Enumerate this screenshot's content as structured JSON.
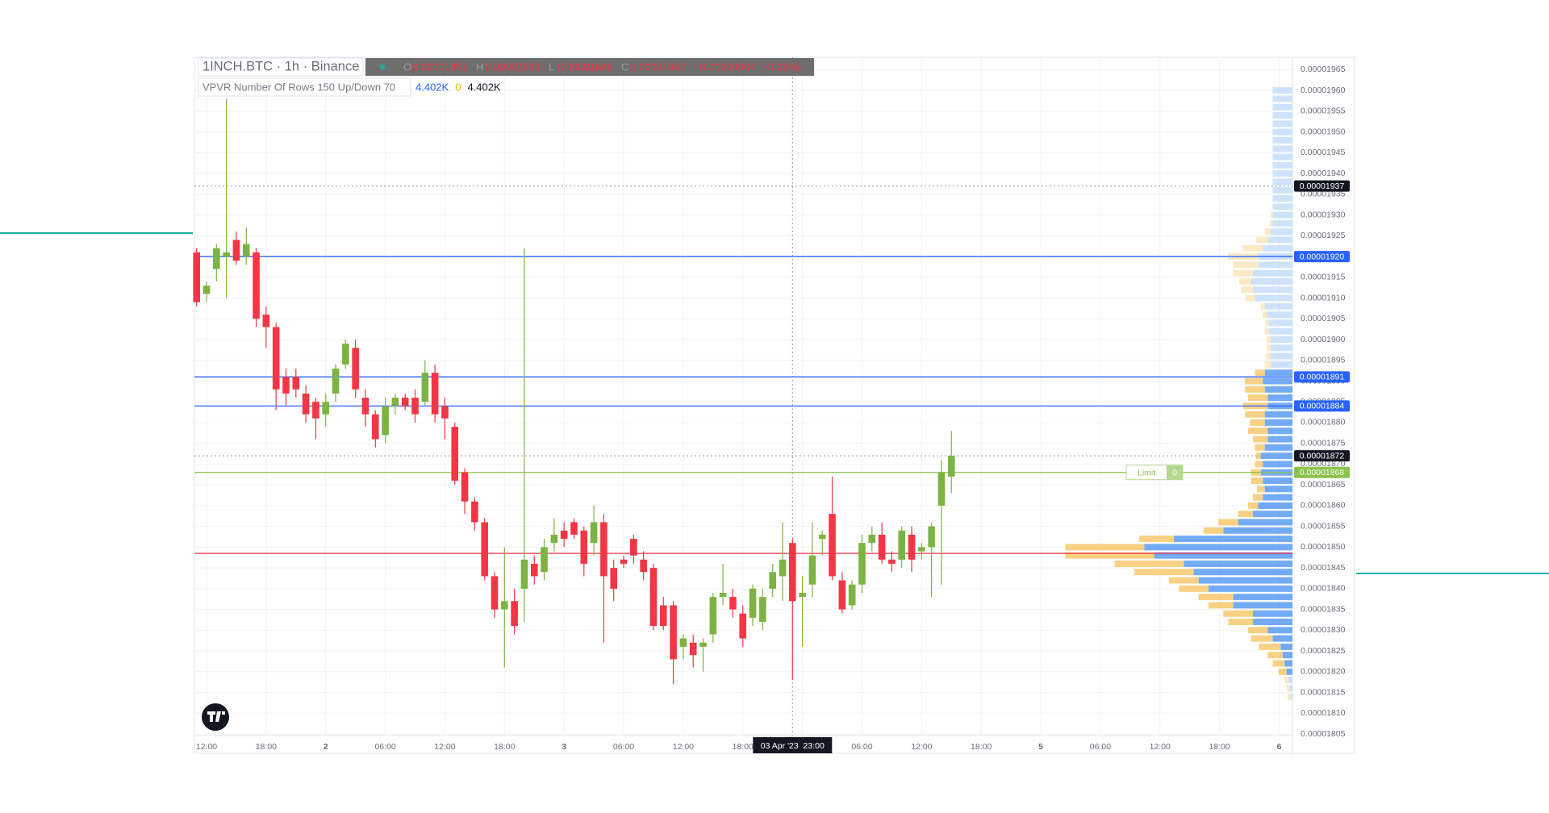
{
  "chart_data": {
    "type": "candlestick",
    "legend": {
      "symbol": "1INCH.BTC · 1h · Binance",
      "ohlc": [
        {
          "key": "O",
          "value": "0.00001851"
        },
        {
          "key": "H",
          "value": "0.00001853"
        },
        {
          "key": "L",
          "value": "0.00001846"
        },
        {
          "key": "C",
          "value": "0.00001847"
        }
      ],
      "change": "−0.00000004 (−0.22%)"
    },
    "indicator": {
      "name": "VPVR Number Of Rows 150 Up/Down 70",
      "values": [
        {
          "text": "4.402K",
          "color": "#2962ff"
        },
        {
          "text": "0",
          "color": "#f5b700"
        },
        {
          "text": "4.402K",
          "color": "#131722"
        }
      ]
    },
    "up_color": "#7cb342",
    "down_color": "#f23645",
    "open": [
      1.921e-05,
      1.911e-05,
      1.917e-05,
      1.92e-05,
      1.924e-05,
      1.92e-05,
      1.921e-05,
      1.906e-05,
      1.903e-05,
      1.891e-05,
      1.891e-05,
      1.887e-05,
      1.885e-05,
      1.882e-05,
      1.887e-05,
      1.894e-05,
      1.898e-05,
      1.886e-05,
      1.882e-05,
      1.877e-05,
      1.884e-05,
      1.886e-05,
      1.886e-05,
      1.885e-05,
      1.892e-05,
      1.884e-05,
      1.879e-05,
      1.868e-05,
      1.861e-05,
      1.856e-05,
      1.843e-05,
      1.835e-05,
      1.837e-05,
      1.84e-05,
      1.846e-05,
      1.844e-05,
      1.851e-05,
      1.854e-05,
      1.856e-05,
      1.854e-05,
      1.851e-05,
      1.856e-05,
      1.845e-05,
      1.847e-05,
      1.852e-05,
      1.847e-05,
      1.845e-05,
      1.836e-05,
      1.836e-05,
      1.826e-05,
      1.827e-05,
      1.826e-05,
      1.829e-05,
      1.838e-05,
      1.838e-05,
      1.834e-05,
      1.833e-05,
      1.832e-05,
      1.84e-05,
      1.843e-05,
      1.851e-05,
      1.838e-05,
      1.841e-05,
      1.852e-05,
      1.858e-05,
      1.842e-05,
      1.836e-05,
      1.841e-05,
      1.851e-05,
      1.853e-05,
      1.847e-05,
      1.847e-05,
      1.853e-05,
      1.849e-05,
      1.85e-05,
      1.86e-05,
      1.867e-05
    ],
    "high": [
      1.922e-05,
      1.914e-05,
      1.923e-05,
      1.958e-05,
      1.926e-05,
      1.927e-05,
      1.922e-05,
      1.908e-05,
      1.904e-05,
      1.893e-05,
      1.893e-05,
      1.889e-05,
      1.886e-05,
      1.887e-05,
      1.894e-05,
      1.9e-05,
      1.9e-05,
      1.888e-05,
      1.883e-05,
      1.886e-05,
      1.887e-05,
      1.887e-05,
      1.888e-05,
      1.895e-05,
      1.894e-05,
      1.886e-05,
      1.88e-05,
      1.869e-05,
      1.862e-05,
      1.857e-05,
      1.844e-05,
      1.85e-05,
      1.84e-05,
      1.922e-05,
      1.848e-05,
      1.852e-05,
      1.857e-05,
      1.856e-05,
      1.857e-05,
      1.855e-05,
      1.86e-05,
      1.858e-05,
      1.847e-05,
      1.848e-05,
      1.853e-05,
      1.849e-05,
      1.846e-05,
      1.838e-05,
      1.837e-05,
      1.829e-05,
      1.829e-05,
      1.828e-05,
      1.839e-05,
      1.846e-05,
      1.84e-05,
      1.836e-05,
      1.841e-05,
      1.84e-05,
      1.846e-05,
      1.856e-05,
      1.852e-05,
      1.843e-05,
      1.856e-05,
      1.854e-05,
      1.867e-05,
      1.844e-05,
      1.842e-05,
      1.853e-05,
      1.855e-05,
      1.856e-05,
      1.849e-05,
      1.855e-05,
      1.855e-05,
      1.851e-05,
      1.856e-05,
      1.871e-05,
      1.878e-05
    ],
    "low": [
      1.908e-05,
      1.909e-05,
      1.914e-05,
      1.91e-05,
      1.918e-05,
      1.918e-05,
      1.903e-05,
      1.898e-05,
      1.883e-05,
      1.884e-05,
      1.886e-05,
      1.88e-05,
      1.876e-05,
      1.879e-05,
      1.885e-05,
      1.893e-05,
      1.886e-05,
      1.879e-05,
      1.874e-05,
      1.875e-05,
      1.882e-05,
      1.883e-05,
      1.88e-05,
      1.884e-05,
      1.88e-05,
      1.876e-05,
      1.865e-05,
      1.858e-05,
      1.854e-05,
      1.842e-05,
      1.833e-05,
      1.821e-05,
      1.829e-05,
      1.832e-05,
      1.841e-05,
      1.842e-05,
      1.849e-05,
      1.85e-05,
      1.852e-05,
      1.843e-05,
      1.848e-05,
      1.827e-05,
      1.837e-05,
      1.845e-05,
      1.846e-05,
      1.842e-05,
      1.83e-05,
      1.83e-05,
      1.817e-05,
      1.823e-05,
      1.821e-05,
      1.82e-05,
      1.827e-05,
      1.836e-05,
      1.833e-05,
      1.826e-05,
      1.831e-05,
      1.83e-05,
      1.838e-05,
      1.837e-05,
      1.818e-05,
      1.826e-05,
      1.838e-05,
      1.848e-05,
      1.842e-05,
      1.834e-05,
      1.835e-05,
      1.839e-05,
      1.849e-05,
      1.846e-05,
      1.844e-05,
      1.845e-05,
      1.844e-05,
      1.847e-05,
      1.838e-05,
      1.841e-05,
      1.863e-05
    ],
    "close": [
      1.909e-05,
      1.913e-05,
      1.922e-05,
      1.921e-05,
      1.919e-05,
      1.923e-05,
      1.905e-05,
      1.903e-05,
      1.888e-05,
      1.887e-05,
      1.888e-05,
      1.882e-05,
      1.881e-05,
      1.885e-05,
      1.893e-05,
      1.899e-05,
      1.888e-05,
      1.882e-05,
      1.876e-05,
      1.884e-05,
      1.886e-05,
      1.884e-05,
      1.882e-05,
      1.892e-05,
      1.882e-05,
      1.881e-05,
      1.866e-05,
      1.861e-05,
      1.856e-05,
      1.843e-05,
      1.835e-05,
      1.837e-05,
      1.831e-05,
      1.847e-05,
      1.843e-05,
      1.85e-05,
      1.853e-05,
      1.852e-05,
      1.853e-05,
      1.846e-05,
      1.856e-05,
      1.843e-05,
      1.84e-05,
      1.846e-05,
      1.848e-05,
      1.844e-05,
      1.831e-05,
      1.831e-05,
      1.823e-05,
      1.828e-05,
      1.824e-05,
      1.827e-05,
      1.838e-05,
      1.839e-05,
      1.835e-05,
      1.828e-05,
      1.84e-05,
      1.838e-05,
      1.844e-05,
      1.847e-05,
      1.837e-05,
      1.839e-05,
      1.848e-05,
      1.853e-05,
      1.843e-05,
      1.835e-05,
      1.841e-05,
      1.851e-05,
      1.853e-05,
      1.847e-05,
      1.846e-05,
      1.854e-05,
      1.847e-05,
      1.85e-05,
      1.855e-05,
      1.868e-05,
      1.872e-05
    ],
    "time_labels": [
      "12:00",
      "18:00",
      "2",
      "06:00",
      "12:00",
      "18:00",
      "3",
      "06:00",
      "12:00",
      "18:00",
      null,
      "06:00",
      "12:00",
      "18:00",
      "5",
      "06:00",
      "12:00",
      "18:00",
      "6"
    ],
    "crosshair_label": "03 Apr '23  23:00",
    "ylim": [
      1.805e-05,
      1.968e-05
    ],
    "yticks": [
      {
        "value": 1.805e-05,
        "label": "0.00001805"
      },
      {
        "value": 1.81e-05,
        "label": "0.00001810"
      },
      {
        "value": 1.815e-05,
        "label": "0.00001815"
      },
      {
        "value": 1.82e-05,
        "label": "0.00001820"
      },
      {
        "value": 1.825e-05,
        "label": "0.00001825"
      },
      {
        "value": 1.83e-05,
        "label": "0.00001830"
      },
      {
        "value": 1.835e-05,
        "label": "0.00001835"
      },
      {
        "value": 1.84e-05,
        "label": "0.00001840"
      },
      {
        "value": 1.845e-05,
        "label": "0.00001845"
      },
      {
        "value": 1.85e-05,
        "label": "0.00001850"
      },
      {
        "value": 1.855e-05,
        "label": "0.00001855"
      },
      {
        "value": 1.86e-05,
        "label": "0.00001860"
      },
      {
        "value": 1.865e-05,
        "label": "0.00001865"
      },
      {
        "value": 1.87e-05,
        "label": "0.00001870"
      },
      {
        "value": 1.875e-05,
        "label": "0.00001875"
      },
      {
        "value": 1.88e-05,
        "label": "0.00001880"
      },
      {
        "value": 1.885e-05,
        "label": "0.00001885"
      },
      {
        "value": 1.89e-05,
        "label": "0.00001890"
      },
      {
        "value": 1.895e-05,
        "label": "0.00001895"
      },
      {
        "value": 1.9e-05,
        "label": "0.00001900"
      },
      {
        "value": 1.905e-05,
        "label": "0.00001905"
      },
      {
        "value": 1.91e-05,
        "label": "0.00001910"
      },
      {
        "value": 1.915e-05,
        "label": "0.00001915"
      },
      {
        "value": 1.92e-05,
        "label": "0.00001920"
      },
      {
        "value": 1.925e-05,
        "label": "0.00001925"
      },
      {
        "value": 1.93e-05,
        "label": "0.00001930"
      },
      {
        "value": 1.935e-05,
        "label": "0.00001935"
      },
      {
        "value": 1.94e-05,
        "label": "0.00001940"
      },
      {
        "value": 1.945e-05,
        "label": "0.00001945"
      },
      {
        "value": 1.95e-05,
        "label": "0.00001950"
      },
      {
        "value": 1.955e-05,
        "label": "0.00001955"
      },
      {
        "value": 1.96e-05,
        "label": "0.00001960"
      },
      {
        "value": 1.965e-05,
        "label": "0.00001965"
      }
    ],
    "grid": true,
    "price_lines": [
      {
        "value": 1.937e-05,
        "label": "0.00001937",
        "color": "#9598a1",
        "style": "dotted",
        "label_color": "#131722"
      },
      {
        "value": 1.92e-05,
        "label": "0.00001920",
        "color": "#2962ff",
        "style": "solid",
        "label_color": "#2962ff"
      },
      {
        "value": 1.891e-05,
        "label": "0.00001891",
        "color": "#2962ff",
        "style": "solid",
        "label_color": "#2962ff"
      },
      {
        "value": 1.884e-05,
        "label": "0.00001884",
        "color": "#2962ff",
        "style": "solid",
        "label_color": "#2962ff"
      },
      {
        "value": 1.872e-05,
        "label": "0.00001872",
        "color": "#9598a1",
        "style": "dotted",
        "label_color": "#131722"
      },
      {
        "value": 1.868e-05,
        "label": "0.00001868",
        "color": "#8bc34a",
        "style": "solid",
        "label_color": "#8bc34a",
        "order": "Limit",
        "quantity": 0
      },
      {
        "value": 1.8485e-05,
        "color": "#f23645",
        "style": "solid"
      }
    ],
    "vpvr": {
      "up_color": "#5b9cf6",
      "down_color": "#f7c96e",
      "outside_up_color": "#c5ddfb",
      "outside_down_color": "#fbe6bd",
      "value_area": [
        1.82e-05,
        1.893e-05
      ],
      "prices": [
        1.814e-05,
        1.816e-05,
        1.818e-05,
        1.82e-05,
        1.822e-05,
        1.824e-05,
        1.826e-05,
        1.828e-05,
        1.83e-05,
        1.832e-05,
        1.834e-05,
        1.836e-05,
        1.838e-05,
        1.84e-05,
        1.842e-05,
        1.844e-05,
        1.846e-05,
        1.848e-05,
        1.85e-05,
        1.852e-05,
        1.854e-05,
        1.856e-05,
        1.858e-05,
        1.86e-05,
        1.862e-05,
        1.864e-05,
        1.866e-05,
        1.868e-05,
        1.87e-05,
        1.872e-05,
        1.874e-05,
        1.876e-05,
        1.878e-05,
        1.88e-05,
        1.882e-05,
        1.884e-05,
        1.886e-05,
        1.888e-05,
        1.89e-05,
        1.892e-05,
        1.894e-05,
        1.896e-05,
        1.898e-05,
        1.9e-05,
        1.902e-05,
        1.904e-05,
        1.906e-05,
        1.908e-05,
        1.91e-05,
        1.912e-05,
        1.914e-05,
        1.916e-05,
        1.918e-05,
        1.92e-05,
        1.922e-05,
        1.924e-05,
        1.926e-05,
        1.928e-05,
        1.93e-05,
        1.932e-05,
        1.934e-05,
        1.936e-05,
        1.938e-05,
        1.94e-05,
        1.942e-05,
        1.944e-05,
        1.946e-05,
        1.948e-05,
        1.95e-05,
        1.952e-05,
        1.954e-05,
        1.956e-05,
        1.958e-05,
        1.96e-05
      ],
      "up": [
        2,
        3,
        4,
        6,
        8,
        10,
        12,
        20,
        25,
        40,
        40,
        60,
        60,
        85,
        95,
        100,
        110,
        140,
        150,
        120,
        70,
        55,
        40,
        35,
        30,
        28,
        30,
        32,
        30,
        32,
        28,
        25,
        25,
        28,
        28,
        25,
        25,
        28,
        30,
        28,
        22,
        22,
        22,
        22,
        24,
        24,
        26,
        28,
        38,
        40,
        42,
        40,
        35,
        35,
        30,
        25,
        22,
        20,
        20,
        20,
        20,
        20,
        20,
        20,
        20,
        20,
        20,
        20,
        20,
        20,
        20,
        20,
        20,
        20
      ],
      "down": [
        3,
        3,
        4,
        8,
        12,
        15,
        22,
        22,
        20,
        25,
        30,
        25,
        35,
        30,
        30,
        60,
        70,
        90,
        80,
        35,
        20,
        20,
        15,
        10,
        10,
        8,
        12,
        10,
        8,
        5,
        10,
        15,
        20,
        15,
        20,
        25,
        20,
        20,
        18,
        10,
        6,
        5,
        4,
        4,
        4,
        3,
        4,
        4,
        10,
        12,
        12,
        20,
        25,
        30,
        20,
        12,
        6,
        3,
        2,
        0,
        0,
        0,
        0,
        0,
        0,
        0,
        0,
        0,
        0,
        0,
        0,
        0,
        0,
        0
      ]
    }
  }
}
